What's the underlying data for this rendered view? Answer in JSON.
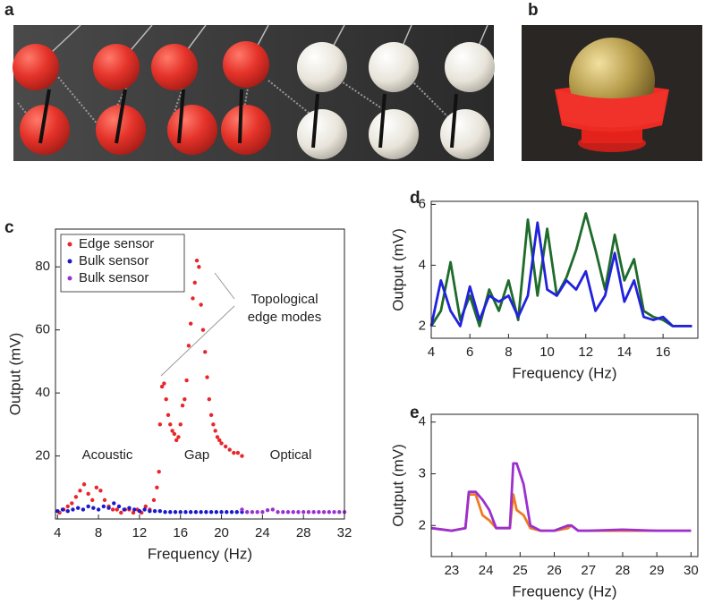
{
  "photos": [
    {
      "label": "a"
    },
    {
      "label": "b"
    }
  ],
  "chart_data": [
    {
      "type": "scatter",
      "panel_label": "c",
      "xlabel": "Frequency (Hz)",
      "ylabel": "Output (mV)",
      "xlim": [
        3.8,
        32
      ],
      "ylim": [
        0,
        92
      ],
      "xticks": [
        4,
        8,
        12,
        16,
        20,
        24,
        28,
        32
      ],
      "yticks": [
        20,
        40,
        60,
        80
      ],
      "legend": "upper left",
      "annotations": [
        "Topological",
        "edge modes",
        "Acoustic",
        "Gap",
        "Optical"
      ],
      "series": [
        {
          "name": "Edge sensor",
          "color": "#e8262b",
          "x": [
            4.2,
            4.6,
            5.0,
            5.4,
            5.8,
            6.2,
            6.6,
            7.0,
            7.4,
            7.8,
            8.2,
            8.6,
            9.0,
            9.4,
            9.8,
            10.2,
            10.6,
            11.0,
            11.4,
            11.8,
            12.2,
            12.6,
            13.0,
            13.4,
            13.7,
            13.9,
            14.0,
            14.2,
            14.4,
            14.6,
            14.8,
            15.0,
            15.2,
            15.4,
            15.6,
            15.8,
            16.0,
            16.2,
            16.4,
            16.6,
            16.8,
            17.0,
            17.2,
            17.4,
            17.6,
            17.8,
            18.0,
            18.2,
            18.4,
            18.6,
            18.8,
            19.0,
            19.2,
            19.4,
            19.6,
            19.8,
            20.0,
            20.4,
            20.8,
            21.2,
            21.6,
            22.0
          ],
          "values": [
            2,
            3,
            4,
            5,
            7,
            9,
            11,
            8,
            6,
            10,
            9,
            6,
            4,
            3,
            3,
            2,
            3,
            3,
            2,
            3,
            2,
            4,
            3,
            6,
            10,
            15,
            30,
            42,
            43,
            38,
            33,
            30,
            28,
            27,
            25,
            26,
            30,
            36,
            38,
            44,
            55,
            62,
            70,
            75,
            82,
            80,
            68,
            60,
            53,
            45,
            38,
            33,
            30,
            28,
            26,
            25,
            24,
            23,
            22,
            21,
            21,
            20
          ]
        },
        {
          "name": "Bulk sensor",
          "color": "#1a1acc",
          "x": [
            4,
            4.5,
            5,
            5.5,
            6,
            6.5,
            7,
            7.5,
            8,
            8.5,
            9,
            9.5,
            10,
            10.5,
            11,
            11.5,
            12,
            12.5,
            13,
            13.5,
            14,
            14.5,
            15,
            15.5,
            16,
            16.5,
            17,
            17.5,
            18,
            18.5,
            19,
            19.5,
            20,
            20.5,
            21,
            21.5,
            22
          ],
          "values": [
            2.5,
            3,
            2.5,
            3,
            3.5,
            3,
            4,
            3.5,
            3,
            4,
            3.5,
            5,
            4,
            3,
            3.5,
            3,
            2.5,
            3,
            2.5,
            2.5,
            2.5,
            2.2,
            2.2,
            2.2,
            2.2,
            2.2,
            2.2,
            2.2,
            2.2,
            2.2,
            2.2,
            2.2,
            2.2,
            2.2,
            2.2,
            2.2,
            2.2
          ]
        },
        {
          "name": "Bulk sensor",
          "color": "#9b30d0",
          "x": [
            22,
            22.5,
            23,
            23.5,
            24,
            24.5,
            25,
            25.5,
            26,
            26.5,
            27,
            27.5,
            28,
            28.5,
            29,
            29.5,
            30,
            30.5,
            31,
            31.5,
            32
          ],
          "values": [
            3,
            2.2,
            2.2,
            2.2,
            2.2,
            2.8,
            3,
            2.2,
            2.2,
            2.2,
            2.2,
            2.2,
            2.2,
            2.2,
            2.2,
            2.2,
            2.2,
            2.2,
            2.2,
            2.2,
            2.2
          ]
        }
      ]
    },
    {
      "type": "line",
      "panel_label": "d",
      "xlabel": "Frequency (Hz)",
      "ylabel": "Output (mV)",
      "xlim": [
        4,
        17.8
      ],
      "ylim": [
        1.6,
        6.1
      ],
      "xticks": [
        4,
        6,
        8,
        10,
        12,
        14,
        16
      ],
      "yticks": [
        2,
        4,
        6
      ],
      "x": [
        4,
        4.5,
        5,
        5.5,
        6,
        6.5,
        7,
        7.5,
        8,
        8.5,
        9,
        9.5,
        10,
        10.5,
        11,
        11.5,
        12,
        12.5,
        13,
        13.5,
        14,
        14.5,
        15,
        15.5,
        16,
        16.5,
        17,
        17.5
      ],
      "series": [
        {
          "color": "#1e6b2a",
          "values": [
            2,
            2.5,
            4.1,
            2.2,
            3,
            2,
            3.2,
            2.5,
            3.5,
            2.2,
            5.5,
            3,
            5.2,
            3,
            3.6,
            4.5,
            5.7,
            4.5,
            3.2,
            5,
            3.5,
            4.2,
            2.5,
            2.3,
            2.2,
            2,
            2,
            2
          ]
        },
        {
          "color": "#2222dd",
          "values": [
            2,
            3.5,
            2.5,
            2,
            3.3,
            2.2,
            3,
            2.8,
            3,
            2.3,
            3,
            5.4,
            3.2,
            3,
            3.5,
            3.2,
            3.8,
            2.5,
            3,
            4.4,
            2.8,
            3.5,
            2.3,
            2.2,
            2.3,
            2,
            2,
            2
          ]
        }
      ]
    },
    {
      "type": "line",
      "panel_label": "e",
      "xlabel": "Frequency (Hz)",
      "ylabel": "Output (mV)",
      "xlim": [
        22.4,
        30.2
      ],
      "ylim": [
        1.4,
        4.15
      ],
      "xticks": [
        23,
        24,
        25,
        26,
        27,
        28,
        29,
        30
      ],
      "yticks": [
        2,
        3,
        4
      ],
      "x": [
        22.4,
        23.0,
        23.4,
        23.5,
        23.7,
        23.9,
        24.1,
        24.3,
        24.7,
        24.8,
        24.9,
        25.1,
        25.3,
        25.6,
        26.0,
        26.4,
        26.5,
        26.7,
        27.0,
        28.0,
        29.0,
        30.0
      ],
      "series": [
        {
          "color": "#f07a20",
          "values": [
            1.95,
            1.9,
            1.95,
            2.6,
            2.6,
            2.2,
            2.1,
            1.95,
            1.95,
            2.6,
            2.3,
            2.2,
            1.95,
            1.9,
            1.9,
            1.95,
            2.0,
            1.9,
            1.9,
            1.9,
            1.9,
            1.9
          ]
        },
        {
          "color": "#9b30d0",
          "values": [
            1.95,
            1.9,
            1.95,
            2.65,
            2.65,
            2.5,
            2.3,
            1.95,
            1.95,
            3.2,
            3.2,
            2.8,
            2.0,
            1.9,
            1.9,
            2.0,
            2.0,
            1.9,
            1.9,
            1.92,
            1.9,
            1.9
          ]
        }
      ]
    }
  ]
}
